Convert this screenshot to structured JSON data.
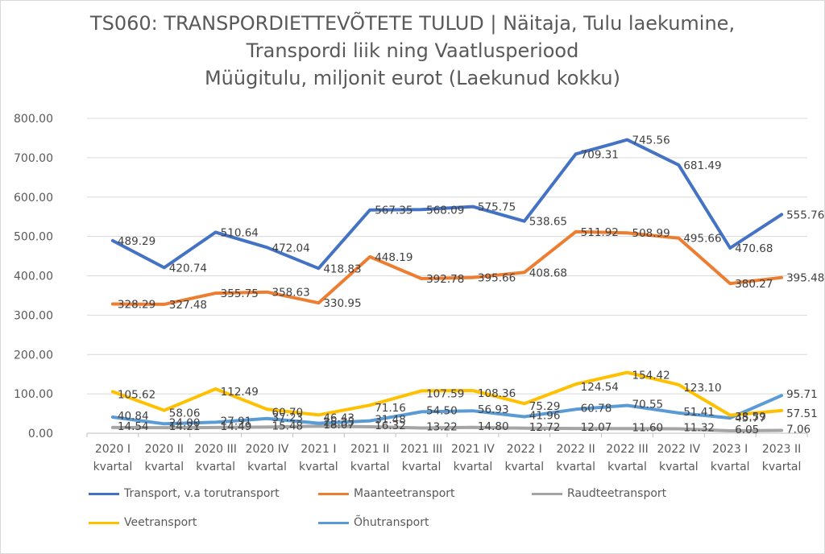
{
  "chart_data": {
    "type": "line",
    "title_lines": [
      "TS060: TRANSPORDIETTEVÕTETE TULUD | Näitaja, Tulu laekumine,",
      "Transpordi liik ning Vaatlusperiood",
      "Müügitulu, miljonit eurot (Laekunud kokku)"
    ],
    "categories": [
      [
        "2020 I",
        "kvartal"
      ],
      [
        "2020 II",
        "kvartal"
      ],
      [
        "2020 III",
        "kvartal"
      ],
      [
        "2020 IV",
        "kvartal"
      ],
      [
        "2021 I",
        "kvartal"
      ],
      [
        "2021 II",
        "kvartal"
      ],
      [
        "2021 III",
        "kvartal"
      ],
      [
        "2021 IV",
        "kvartal"
      ],
      [
        "2022 I",
        "kvartal"
      ],
      [
        "2022 II",
        "kvartal"
      ],
      [
        "2022 III",
        "kvartal"
      ],
      [
        "2022 IV",
        "kvartal"
      ],
      [
        "2023 I",
        "kvartal"
      ],
      [
        "2023 II",
        "kvartal"
      ]
    ],
    "ylim": [
      0,
      800
    ],
    "yticks": [
      "0.00",
      "100.00",
      "200.00",
      "300.00",
      "400.00",
      "500.00",
      "600.00",
      "700.00",
      "800.00"
    ],
    "grid": true,
    "legend_position": "bottom",
    "series": [
      {
        "name": "Transport, v.a torutransport",
        "color": "#4472c4",
        "values": [
          489.29,
          420.74,
          510.64,
          472.04,
          418.83,
          567.35,
          568.09,
          575.75,
          538.65,
          709.31,
          745.56,
          681.49,
          470.68,
          555.76
        ],
        "labels": [
          "489.29",
          "420.74",
          "510.64",
          "472.04",
          "418.83",
          "567.35",
          "568.09",
          "575.75",
          "538.65",
          "709.31",
          "745.56",
          "681.49",
          "470.68",
          "555.76"
        ]
      },
      {
        "name": "Maanteetransport",
        "color": "#ed7d31",
        "values": [
          328.29,
          327.48,
          355.75,
          358.63,
          330.95,
          448.19,
          392.78,
          395.66,
          408.68,
          511.92,
          508.99,
          495.66,
          380.27,
          395.48
        ],
        "labels": [
          "328.29",
          "327.48",
          "355.75",
          "358.63",
          "330.95",
          "448.19",
          "392.78",
          "395.66",
          "408.68",
          "511.92",
          "508.99",
          "495.66",
          "380.27",
          "395.48"
        ]
      },
      {
        "name": "Raudteetransport",
        "color": "#a5a5a5",
        "values": [
          14.54,
          14.21,
          14.49,
          15.48,
          18.07,
          16.32,
          13.22,
          14.8,
          12.72,
          12.07,
          11.6,
          11.32,
          6.05,
          7.06
        ],
        "labels": [
          "14.54",
          "14.21",
          "14.49",
          "15.48",
          "18.07",
          "16.32",
          "13.22",
          "14.80",
          "12.72",
          "12.07",
          "11.60",
          "11.32",
          "6.05",
          "7.06"
        ]
      },
      {
        "name": "Veetransport",
        "color": "#ffc000",
        "values": [
          105.62,
          58.06,
          112.49,
          60.7,
          46.43,
          71.16,
          107.59,
          108.36,
          75.29,
          124.54,
          154.42,
          123.1,
          45.77,
          57.51
        ],
        "labels": [
          "105.62",
          "58.06",
          "112.49",
          "60.70",
          "46.43",
          "71.16",
          "107.59",
          "108.36",
          "75.29",
          "124.54",
          "154.42",
          "123.10",
          "45.77",
          "57.51"
        ]
      },
      {
        "name": "Õhutransport",
        "color": "#5b9bd5",
        "values": [
          40.84,
          24.0,
          27.91,
          37.23,
          25.35,
          31.48,
          54.5,
          56.93,
          41.96,
          60.78,
          70.55,
          51.41,
          38.59,
          95.71
        ],
        "labels": [
          "40.84",
          "24.00",
          "27.91",
          "37.23",
          "25.35",
          "31.48",
          "54.50",
          "56.93",
          "41.96",
          "60.78",
          "70.55",
          "51.41",
          "38.59",
          "95.71"
        ]
      }
    ]
  }
}
